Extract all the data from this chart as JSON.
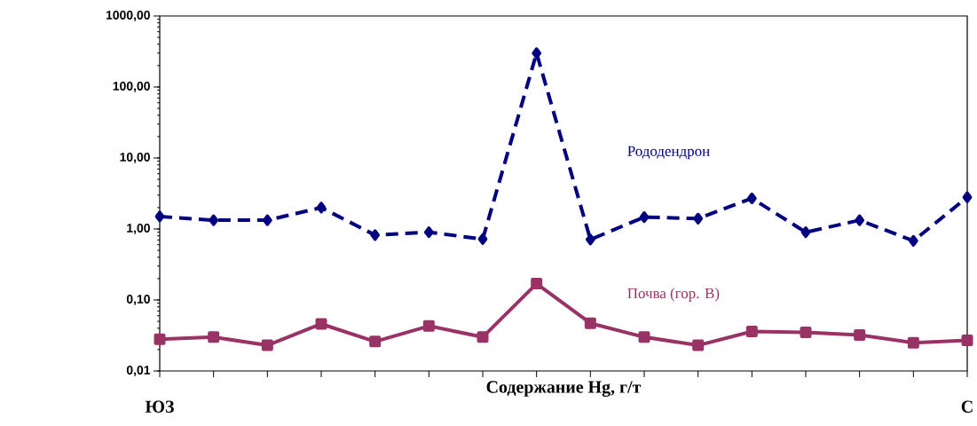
{
  "chart_data": {
    "type": "line",
    "xlabel": "Содержание Hg, г/т",
    "categories": [
      null,
      null,
      null,
      null,
      null,
      null,
      null,
      null,
      null,
      null,
      null,
      null,
      null,
      null,
      null,
      null
    ],
    "series": [
      {
        "name": "Рододендрон",
        "color": "#000080",
        "marker": "diamond",
        "line_style": "dashed",
        "values": [
          1.5,
          1.33,
          1.33,
          2.0,
          0.82,
          0.9,
          0.72,
          300,
          0.71,
          1.47,
          1.4,
          2.7,
          0.9,
          1.33,
          0.68,
          2.8
        ]
      },
      {
        "name": "Почва (гор. В)",
        "color": "#993366",
        "marker": "square",
        "line_style": "solid",
        "values": [
          0.028,
          0.03,
          0.023,
          0.046,
          0.026,
          0.043,
          0.03,
          0.17,
          0.047,
          0.03,
          0.023,
          0.036,
          0.035,
          0.032,
          0.025,
          0.027
        ]
      }
    ],
    "log": "y",
    "ylim": [
      0.01,
      1000
    ],
    "yticks": [
      {
        "value": 0.01,
        "label": "0,01"
      },
      {
        "value": 0.1,
        "label": "0,10"
      },
      {
        "value": 1,
        "label": "1,00"
      },
      {
        "value": 10,
        "label": "10,00"
      },
      {
        "value": 100,
        "label": "100,00"
      },
      {
        "value": 1000,
        "label": "1000,00"
      }
    ],
    "grid": false,
    "legend": false,
    "annotations": [
      "ЮЗ",
      "С"
    ]
  }
}
